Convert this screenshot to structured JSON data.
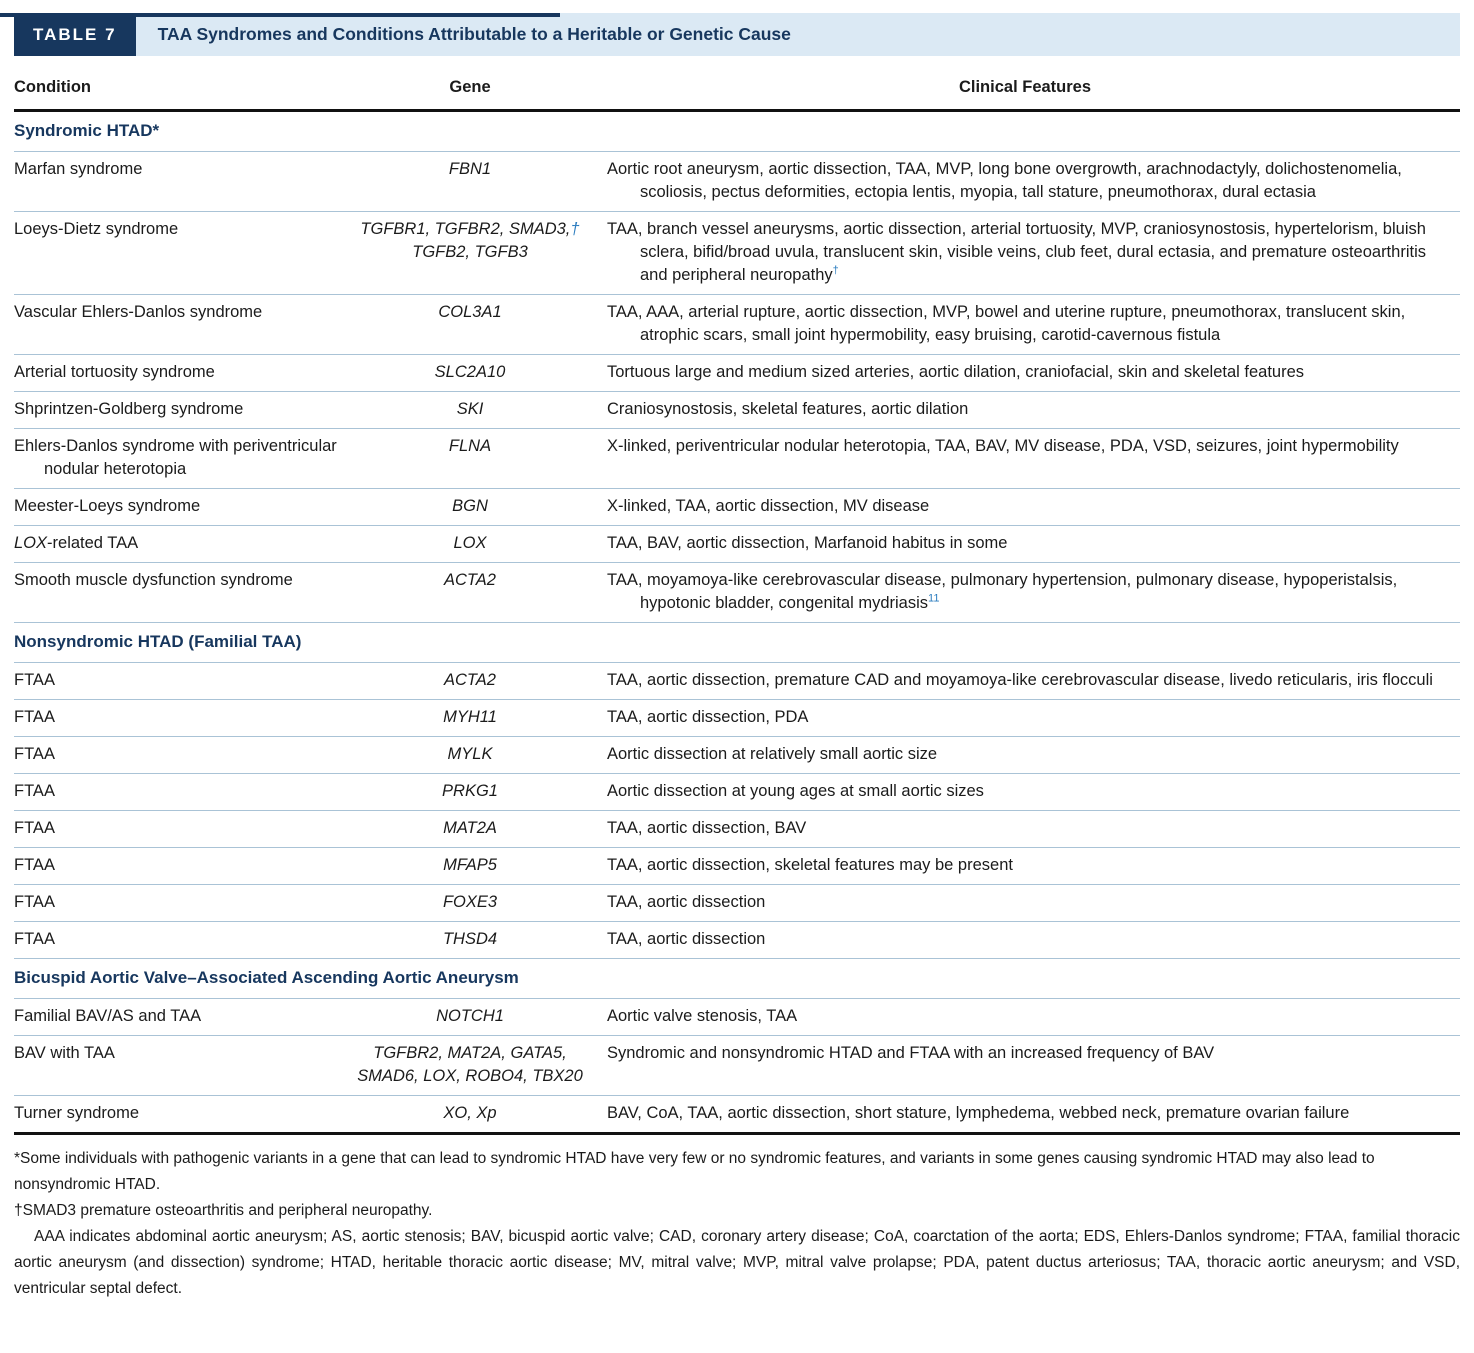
{
  "header": {
    "table_label": "TABLE 7",
    "title": "TAA Syndromes and Conditions Attributable to a Heritable or Genetic Cause"
  },
  "columns": {
    "condition": "Condition",
    "gene": "Gene",
    "features": "Clinical Features"
  },
  "colors": {
    "navy": "#17375e",
    "title_bg": "#dbe9f4",
    "divider": "#aac3d6",
    "accent_blue": "#2b7cbf"
  },
  "sections": [
    {
      "heading": "Syndromic HTAD*",
      "rows": [
        {
          "condition": "Marfan syndrome",
          "gene": "FBN1",
          "features": "Aortic root aneurysm, aortic dissection, TAA, MVP, long bone overgrowth, arachnodactyly, dolichostenomelia, scoliosis, pectus deformities, ectopia lentis, myopia, tall stature, pneumothorax, dural ectasia"
        },
        {
          "condition": "Loeys-Dietz syndrome",
          "gene": "TGFBR1, TGFBR2, SMAD3,~†~ TGFB2, TGFB3",
          "features": "TAA, branch vessel aneurysms, aortic dissection, arterial tortuosity, MVP, craniosynostosis, hypertelorism, bluish sclera, bifid/broad uvula, translucent skin, visible veins, club feet, dural ectasia, and premature osteoarthritis and peripheral neuropathy^†^"
        },
        {
          "condition": "Vascular Ehlers-Danlos syndrome",
          "gene": "COL3A1",
          "features": "TAA, AAA, arterial rupture, aortic dissection, MVP, bowel and uterine rupture, pneumothorax, translucent skin, atrophic scars, small joint hypermobility, easy bruising, carotid-cavernous fistula"
        },
        {
          "condition": "Arterial tortuosity syndrome",
          "gene": "SLC2A10",
          "features": "Tortuous large and medium sized arteries, aortic dilation, craniofacial, skin and skeletal features"
        },
        {
          "condition": "Shprintzen-Goldberg syndrome",
          "gene": "SKI",
          "features": "Craniosynostosis, skeletal features, aortic dilation"
        },
        {
          "condition": "Ehlers-Danlos syndrome with periventricular nodular heterotopia",
          "gene": "FLNA",
          "features": "X-linked, periventricular nodular heterotopia, TAA, BAV, MV disease, PDA, VSD, seizures, joint hypermobility"
        },
        {
          "condition": "Meester-Loeys syndrome",
          "gene": "BGN",
          "features": "X-linked, TAA, aortic dissection, MV disease"
        },
        {
          "condition": "*LOX*-related TAA",
          "gene": "LOX",
          "features": "TAA, BAV, aortic dissection, Marfanoid habitus in some"
        },
        {
          "condition": "Smooth muscle dysfunction syndrome",
          "gene": "ACTA2",
          "features": "TAA, moyamoya-like cerebrovascular disease, pulmonary hypertension, pulmonary disease, hypoperistalsis, hypotonic bladder, congenital mydriasis^11^"
        }
      ]
    },
    {
      "heading": "Nonsyndromic HTAD (Familial TAA)",
      "rows": [
        {
          "condition": "FTAA",
          "gene": "ACTA2",
          "features": "TAA, aortic dissection, premature CAD and moyamoya-like cerebrovascular disease, livedo reticularis, iris flocculi"
        },
        {
          "condition": "FTAA",
          "gene": "MYH11",
          "features": "TAA, aortic dissection, PDA"
        },
        {
          "condition": "FTAA",
          "gene": "MYLK",
          "features": "Aortic dissection at relatively small aortic size"
        },
        {
          "condition": "FTAA",
          "gene": "PRKG1",
          "features": "Aortic dissection at young ages at small aortic sizes"
        },
        {
          "condition": "FTAA",
          "gene": "MAT2A",
          "features": "TAA, aortic dissection, BAV"
        },
        {
          "condition": "FTAA",
          "gene": "MFAP5",
          "features": "TAA, aortic dissection, skeletal features may be present"
        },
        {
          "condition": "FTAA",
          "gene": "FOXE3",
          "features": "TAA, aortic dissection"
        },
        {
          "condition": "FTAA",
          "gene": "THSD4",
          "features": "TAA, aortic dissection"
        }
      ]
    },
    {
      "heading": "Bicuspid Aortic Valve–Associated Ascending Aortic Aneurysm",
      "rows": [
        {
          "condition": "Familial BAV/AS and TAA",
          "gene": "NOTCH1",
          "features": "Aortic valve stenosis, TAA"
        },
        {
          "condition": "BAV with TAA",
          "gene": "TGFBR2, MAT2A, GATA5, SMAD6, LOX, ROBO4, TBX20",
          "features": "Syndromic and nonsyndromic HTAD and FTAA with an increased frequency of BAV"
        },
        {
          "condition": "Turner syndrome",
          "gene": "XO, Xp",
          "features": "BAV, CoA, TAA, aortic dissection, short stature, lymphedema, webbed neck, premature ovarian failure"
        }
      ]
    }
  ],
  "footnotes": {
    "star": "*Some individuals with pathogenic variants in a gene that can lead to syndromic HTAD have very few or no syndromic features, and variants in some genes causing syndromic HTAD may also lead to nonsyndromic HTAD.",
    "dagger": "†SMAD3 premature osteoarthritis and peripheral neuropathy.",
    "abbreviations": "AAA indicates abdominal aortic aneurysm; AS, aortic stenosis; BAV, bicuspid aortic valve; CAD, coronary artery disease; CoA, coarctation of the aorta; EDS, Ehlers-Danlos syndrome; FTAA, familial thoracic aortic aneurysm (and dissection) syndrome; HTAD, heritable thoracic aortic disease; MV, mitral valve; MVP, mitral valve prolapse; PDA, patent ductus arteriosus; TAA, thoracic aortic aneurysm; and VSD, ventricular septal defect."
  }
}
